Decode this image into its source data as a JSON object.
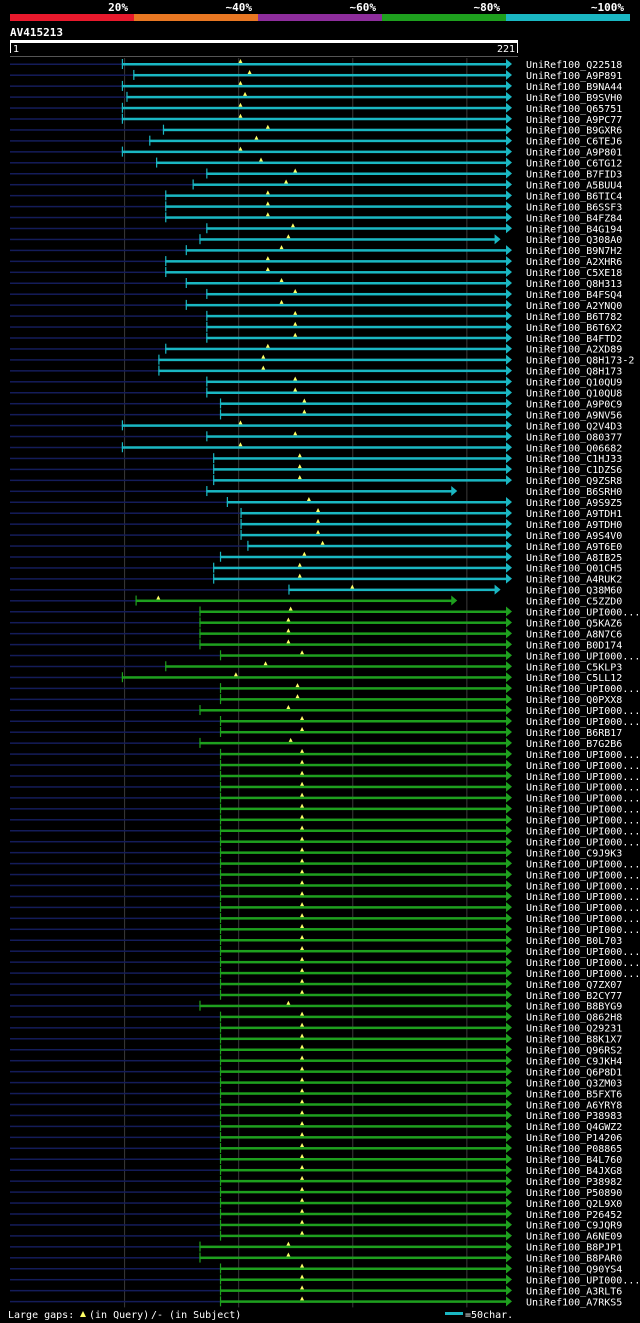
{
  "header": {
    "legend": [
      {
        "label": "20%",
        "color": "#e8192c"
      },
      {
        "label": "~40%",
        "color": "#e87722"
      },
      {
        "label": "~60%",
        "color": "#8e2d9c"
      },
      {
        "label": "~80%",
        "color": "#1ea01e"
      },
      {
        "label": "~100%",
        "color": "#1ab7c3"
      }
    ],
    "query_id": "AV415213",
    "query_start": "1",
    "query_end": "221"
  },
  "footer": {
    "gaps_legend": "Large gaps:",
    "gap_query": "(in Query)",
    "gap_subject": "/- (in Subject)",
    "scale_label": "=50char."
  },
  "colors": {
    "cyan": "#1ab7c3",
    "green": "#1ea01e",
    "navy": "#141c5a",
    "marker": "#ffff66"
  },
  "hits": [
    {
      "name": "UniRef100_Q22518",
      "color": "cyan",
      "start": 50,
      "end": 221,
      "marker": 102
    },
    {
      "name": "UniRef100_A9P891",
      "color": "cyan",
      "start": 55,
      "end": 221,
      "marker": 106
    },
    {
      "name": "UniRef100_B9NA44",
      "color": "cyan",
      "start": 50,
      "end": 221,
      "marker": 102
    },
    {
      "name": "UniRef100_B9SVH0",
      "color": "cyan",
      "start": 52,
      "end": 221,
      "marker": 104
    },
    {
      "name": "UniRef100_Q65751",
      "color": "cyan",
      "start": 50,
      "end": 221,
      "marker": 102
    },
    {
      "name": "UniRef100_A9PC77",
      "color": "cyan",
      "start": 50,
      "end": 221,
      "marker": 102
    },
    {
      "name": "UniRef100_B9GXR6",
      "color": "cyan",
      "start": 68,
      "end": 221,
      "marker": 114
    },
    {
      "name": "UniRef100_C6TEJ6",
      "color": "cyan",
      "start": 62,
      "end": 221,
      "marker": 109
    },
    {
      "name": "UniRef100_A9P801",
      "color": "cyan",
      "start": 50,
      "end": 221,
      "marker": 102
    },
    {
      "name": "UniRef100_C6TG12",
      "color": "cyan",
      "start": 65,
      "end": 221,
      "marker": 111
    },
    {
      "name": "UniRef100_B7FID3",
      "color": "cyan",
      "start": 87,
      "end": 221,
      "marker": 126
    },
    {
      "name": "UniRef100_A5BUU4",
      "color": "cyan",
      "start": 81,
      "end": 221,
      "marker": 122
    },
    {
      "name": "UniRef100_B6TIC4",
      "color": "cyan",
      "start": 69,
      "end": 221,
      "marker": 114
    },
    {
      "name": "UniRef100_B6SSF3",
      "color": "cyan",
      "start": 69,
      "end": 221,
      "marker": 114
    },
    {
      "name": "UniRef100_B4FZ84",
      "color": "cyan",
      "start": 69,
      "end": 221,
      "marker": 114
    },
    {
      "name": "UniRef100_B4G194",
      "color": "cyan",
      "start": 87,
      "end": 221,
      "marker": 125
    },
    {
      "name": "UniRef100_Q308A0",
      "color": "cyan",
      "start": 84,
      "end": 216,
      "marker": 123
    },
    {
      "name": "UniRef100_B9N7H2",
      "color": "cyan",
      "start": 78,
      "end": 221,
      "marker": 120
    },
    {
      "name": "UniRef100_A2XHR6",
      "color": "cyan",
      "start": 69,
      "end": 221,
      "marker": 114
    },
    {
      "name": "UniRef100_C5XE18",
      "color": "cyan",
      "start": 69,
      "end": 221,
      "marker": 114
    },
    {
      "name": "UniRef100_Q8H313",
      "color": "cyan",
      "start": 78,
      "end": 221,
      "marker": 120
    },
    {
      "name": "UniRef100_B4FSQ4",
      "color": "cyan",
      "start": 87,
      "end": 221,
      "marker": 126
    },
    {
      "name": "UniRef100_A2YNQ0",
      "color": "cyan",
      "start": 78,
      "end": 221,
      "marker": 120
    },
    {
      "name": "UniRef100_B6T782",
      "color": "cyan",
      "start": 87,
      "end": 221,
      "marker": 126
    },
    {
      "name": "UniRef100_B6T6X2",
      "color": "cyan",
      "start": 87,
      "end": 221,
      "marker": 126
    },
    {
      "name": "UniRef100_B4FTD2",
      "color": "cyan",
      "start": 87,
      "end": 221,
      "marker": 126
    },
    {
      "name": "UniRef100_A2XD89",
      "color": "cyan",
      "start": 69,
      "end": 221,
      "marker": 114
    },
    {
      "name": "UniRef100_Q8H173-2",
      "color": "cyan",
      "start": 66,
      "end": 221,
      "marker": 112
    },
    {
      "name": "UniRef100_Q8H173",
      "color": "cyan",
      "start": 66,
      "end": 221,
      "marker": 112
    },
    {
      "name": "UniRef100_Q10QU9",
      "color": "cyan",
      "start": 87,
      "end": 221,
      "marker": 126
    },
    {
      "name": "UniRef100_Q10QU8",
      "color": "cyan",
      "start": 87,
      "end": 221,
      "marker": 126
    },
    {
      "name": "UniRef100_A9P0C9",
      "color": "cyan",
      "start": 93,
      "end": 221,
      "marker": 130
    },
    {
      "name": "UniRef100_A9NV56",
      "color": "cyan",
      "start": 93,
      "end": 221,
      "marker": 130
    },
    {
      "name": "UniRef100_Q2V4D3",
      "color": "cyan",
      "start": 50,
      "end": 221,
      "marker": 102
    },
    {
      "name": "UniRef100_O80377",
      "color": "cyan",
      "start": 87,
      "end": 221,
      "marker": 126
    },
    {
      "name": "UniRef100_Q06682",
      "color": "cyan",
      "start": 50,
      "end": 221,
      "marker": 102
    },
    {
      "name": "UniRef100_C1HJ33",
      "color": "cyan",
      "start": 90,
      "end": 221,
      "marker": 128
    },
    {
      "name": "UniRef100_C1DZS6",
      "color": "cyan",
      "start": 90,
      "end": 221,
      "marker": 128
    },
    {
      "name": "UniRef100_Q9ZSR8",
      "color": "cyan",
      "start": 90,
      "end": 221,
      "marker": 128
    },
    {
      "name": "UniRef100_B6SRH0",
      "color": "cyan",
      "start": 87,
      "end": 197,
      "marker": null
    },
    {
      "name": "UniRef100_A9S9Z5",
      "color": "cyan",
      "start": 96,
      "end": 221,
      "marker": 132
    },
    {
      "name": "UniRef100_A9TDH1",
      "color": "cyan",
      "start": 102,
      "end": 221,
      "marker": 136
    },
    {
      "name": "UniRef100_A9TDH0",
      "color": "cyan",
      "start": 102,
      "end": 221,
      "marker": 136
    },
    {
      "name": "UniRef100_A9S4V0",
      "color": "cyan",
      "start": 102,
      "end": 221,
      "marker": 136
    },
    {
      "name": "UniRef100_A9T6E0",
      "color": "cyan",
      "start": 105,
      "end": 221,
      "marker": 138
    },
    {
      "name": "UniRef100_A8IB25",
      "color": "cyan",
      "start": 93,
      "end": 221,
      "marker": 130
    },
    {
      "name": "UniRef100_Q01CH5",
      "color": "cyan",
      "start": 90,
      "end": 221,
      "marker": 128
    },
    {
      "name": "UniRef100_A4RUK2",
      "color": "cyan",
      "start": 90,
      "end": 221,
      "marker": 128
    },
    {
      "name": "UniRef100_Q38M60",
      "color": "cyan",
      "start": 123,
      "end": 216,
      "marker": 151
    },
    {
      "name": "UniRef100_C5ZZD0",
      "color": "green",
      "start": 56,
      "end": 197,
      "marker": 66
    },
    {
      "name": "UniRef100_UPI000...",
      "color": "green",
      "start": 84,
      "end": 221,
      "marker": 124
    },
    {
      "name": "UniRef100_Q5KAZ6",
      "color": "green",
      "start": 84,
      "end": 221,
      "marker": 123
    },
    {
      "name": "UniRef100_A8N7C6",
      "color": "green",
      "start": 84,
      "end": 221,
      "marker": 123
    },
    {
      "name": "UniRef100_B0D174",
      "color": "green",
      "start": 84,
      "end": 221,
      "marker": 123
    },
    {
      "name": "UniRef100_UPI000...",
      "color": "green",
      "start": 93,
      "end": 221,
      "marker": 129
    },
    {
      "name": "UniRef100_C5KLP3",
      "color": "green",
      "start": 69,
      "end": 221,
      "marker": 113
    },
    {
      "name": "UniRef100_C5LL12",
      "color": "green",
      "start": 50,
      "end": 221,
      "marker": 100
    },
    {
      "name": "UniRef100_UPI000...",
      "color": "green",
      "start": 93,
      "end": 221,
      "marker": 127
    },
    {
      "name": "UniRef100_Q0PXX8",
      "color": "green",
      "start": 93,
      "end": 221,
      "marker": 127
    },
    {
      "name": "UniRef100_UPI000...",
      "color": "green",
      "start": 84,
      "end": 221,
      "marker": 123
    },
    {
      "name": "UniRef100_UPI000...",
      "color": "green",
      "start": 93,
      "end": 221,
      "marker": 129
    },
    {
      "name": "UniRef100_B6RB17",
      "color": "green",
      "start": 93,
      "end": 221,
      "marker": 129
    },
    {
      "name": "UniRef100_B7G2B6",
      "color": "green",
      "start": 84,
      "end": 221,
      "marker": 124
    },
    {
      "name": "UniRef100_UPI000...",
      "color": "green",
      "start": 93,
      "end": 221,
      "marker": 129
    },
    {
      "name": "UniRef100_UPI000...",
      "color": "green",
      "start": 93,
      "end": 221,
      "marker": 129
    },
    {
      "name": "UniRef100_UPI000...",
      "color": "green",
      "start": 93,
      "end": 221,
      "marker": 129
    },
    {
      "name": "UniRef100_UPI000...",
      "color": "green",
      "start": 93,
      "end": 221,
      "marker": 129
    },
    {
      "name": "UniRef100_UPI000...",
      "color": "green",
      "start": 93,
      "end": 221,
      "marker": 129
    },
    {
      "name": "UniRef100_UPI000...",
      "color": "green",
      "start": 93,
      "end": 221,
      "marker": 129
    },
    {
      "name": "UniRef100_UPI000...",
      "color": "green",
      "start": 93,
      "end": 221,
      "marker": 129
    },
    {
      "name": "UniRef100_UPI000...",
      "color": "green",
      "start": 93,
      "end": 221,
      "marker": 129
    },
    {
      "name": "UniRef100_UPI000...",
      "color": "green",
      "start": 93,
      "end": 221,
      "marker": 129
    },
    {
      "name": "UniRef100_C9J9K3",
      "color": "green",
      "start": 93,
      "end": 221,
      "marker": 129
    },
    {
      "name": "UniRef100_UPI000...",
      "color": "green",
      "start": 93,
      "end": 221,
      "marker": 129
    },
    {
      "name": "UniRef100_UPI000...",
      "color": "green",
      "start": 93,
      "end": 221,
      "marker": 129
    },
    {
      "name": "UniRef100_UPI000...",
      "color": "green",
      "start": 93,
      "end": 221,
      "marker": 129
    },
    {
      "name": "UniRef100_UPI000...",
      "color": "green",
      "start": 93,
      "end": 221,
      "marker": 129
    },
    {
      "name": "UniRef100_UPI000...",
      "color": "green",
      "start": 93,
      "end": 221,
      "marker": 129
    },
    {
      "name": "UniRef100_UPI000...",
      "color": "green",
      "start": 93,
      "end": 221,
      "marker": 129
    },
    {
      "name": "UniRef100_UPI000...",
      "color": "green",
      "start": 93,
      "end": 221,
      "marker": 129
    },
    {
      "name": "UniRef100_B0L703",
      "color": "green",
      "start": 93,
      "end": 221,
      "marker": 129
    },
    {
      "name": "UniRef100_UPI000...",
      "color": "green",
      "start": 93,
      "end": 221,
      "marker": 129
    },
    {
      "name": "UniRef100_UPI000...",
      "color": "green",
      "start": 93,
      "end": 221,
      "marker": 129
    },
    {
      "name": "UniRef100_UPI000...",
      "color": "green",
      "start": 93,
      "end": 221,
      "marker": 129
    },
    {
      "name": "UniRef100_Q7ZX07",
      "color": "green",
      "start": 93,
      "end": 221,
      "marker": 129
    },
    {
      "name": "UniRef100_B2CY77",
      "color": "green",
      "start": 93,
      "end": 221,
      "marker": 129
    },
    {
      "name": "UniRef100_B8BYG9",
      "color": "green",
      "start": 84,
      "end": 221,
      "marker": 123
    },
    {
      "name": "UniRef100_Q862H8",
      "color": "green",
      "start": 93,
      "end": 221,
      "marker": 129
    },
    {
      "name": "UniRef100_Q29231",
      "color": "green",
      "start": 93,
      "end": 221,
      "marker": 129
    },
    {
      "name": "UniRef100_B8K1X7",
      "color": "green",
      "start": 93,
      "end": 221,
      "marker": 129
    },
    {
      "name": "UniRef100_Q96RS2",
      "color": "green",
      "start": 93,
      "end": 221,
      "marker": 129
    },
    {
      "name": "UniRef100_C9JKH4",
      "color": "green",
      "start": 93,
      "end": 221,
      "marker": 129
    },
    {
      "name": "UniRef100_Q6P8D1",
      "color": "green",
      "start": 93,
      "end": 221,
      "marker": 129
    },
    {
      "name": "UniRef100_Q3ZM03",
      "color": "green",
      "start": 93,
      "end": 221,
      "marker": 129
    },
    {
      "name": "UniRef100_B5FXT6",
      "color": "green",
      "start": 93,
      "end": 221,
      "marker": 129
    },
    {
      "name": "UniRef100_A6YRY8",
      "color": "green",
      "start": 93,
      "end": 221,
      "marker": 129
    },
    {
      "name": "UniRef100_P38983",
      "color": "green",
      "start": 93,
      "end": 221,
      "marker": 129
    },
    {
      "name": "UniRef100_Q4GWZ2",
      "color": "green",
      "start": 93,
      "end": 221,
      "marker": 129
    },
    {
      "name": "UniRef100_P14206",
      "color": "green",
      "start": 93,
      "end": 221,
      "marker": 129
    },
    {
      "name": "UniRef100_P08865",
      "color": "green",
      "start": 93,
      "end": 221,
      "marker": 129
    },
    {
      "name": "UniRef100_B4L760",
      "color": "green",
      "start": 93,
      "end": 221,
      "marker": 129
    },
    {
      "name": "UniRef100_B4JXG8",
      "color": "green",
      "start": 93,
      "end": 221,
      "marker": 129
    },
    {
      "name": "UniRef100_P38982",
      "color": "green",
      "start": 93,
      "end": 221,
      "marker": 129
    },
    {
      "name": "UniRef100_P50890",
      "color": "green",
      "start": 93,
      "end": 221,
      "marker": 129
    },
    {
      "name": "UniRef100_Q2L9X0",
      "color": "green",
      "start": 93,
      "end": 221,
      "marker": 129
    },
    {
      "name": "UniRef100_P26452",
      "color": "green",
      "start": 93,
      "end": 221,
      "marker": 129
    },
    {
      "name": "UniRef100_C9JQR9",
      "color": "green",
      "start": 93,
      "end": 221,
      "marker": 129
    },
    {
      "name": "UniRef100_A6NE09",
      "color": "green",
      "start": 93,
      "end": 221,
      "marker": 129
    },
    {
      "name": "UniRef100_B8PJP1",
      "color": "green",
      "start": 84,
      "end": 221,
      "marker": 123
    },
    {
      "name": "UniRef100_B8PAR0",
      "color": "green",
      "start": 84,
      "end": 221,
      "marker": 123
    },
    {
      "name": "UniRef100_Q90YS4",
      "color": "green",
      "start": 93,
      "end": 221,
      "marker": 129
    },
    {
      "name": "UniRef100_UPI000...",
      "color": "green",
      "start": 93,
      "end": 221,
      "marker": 129
    },
    {
      "name": "UniRef100_A3RLT6",
      "color": "green",
      "start": 93,
      "end": 221,
      "marker": 129
    },
    {
      "name": "UniRef100_A7RKS5",
      "color": "green",
      "start": 93,
      "end": 221,
      "marker": 129
    }
  ]
}
